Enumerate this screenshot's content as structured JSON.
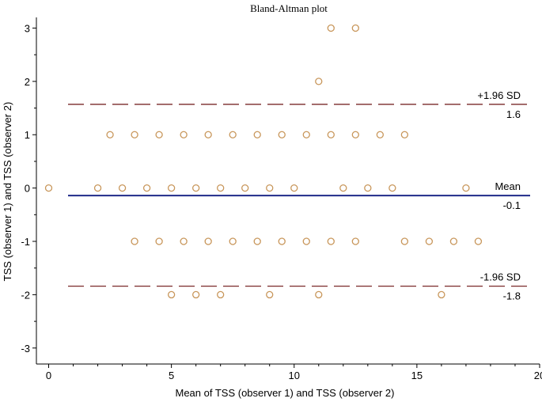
{
  "chart_data": {
    "type": "scatter",
    "title": "Bland-Altman plot",
    "xlabel": "Mean of TSS (observer 1) and TSS (observer 2)",
    "ylabel": "TSS (observer 1) and TSS (observer 2)",
    "xlim": [
      -0.5,
      20
    ],
    "ylim": [
      -3.3,
      3.2
    ],
    "xticks": [
      0,
      5,
      10,
      15,
      20
    ],
    "yticks": [
      -3,
      -2,
      -1,
      0,
      1,
      2,
      3
    ],
    "grid": false,
    "marker_color": "#c8965a",
    "points": [
      {
        "x": 0,
        "y": 0
      },
      {
        "x": 2,
        "y": 0
      },
      {
        "x": 3,
        "y": 0
      },
      {
        "x": 4,
        "y": 0
      },
      {
        "x": 5,
        "y": 0
      },
      {
        "x": 6,
        "y": 0
      },
      {
        "x": 7,
        "y": 0
      },
      {
        "x": 8,
        "y": 0
      },
      {
        "x": 9,
        "y": 0
      },
      {
        "x": 10,
        "y": 0
      },
      {
        "x": 12,
        "y": 0
      },
      {
        "x": 13,
        "y": 0
      },
      {
        "x": 14,
        "y": 0
      },
      {
        "x": 17,
        "y": 0
      },
      {
        "x": 2.5,
        "y": 1
      },
      {
        "x": 3.5,
        "y": 1
      },
      {
        "x": 4.5,
        "y": 1
      },
      {
        "x": 5.5,
        "y": 1
      },
      {
        "x": 6.5,
        "y": 1
      },
      {
        "x": 7.5,
        "y": 1
      },
      {
        "x": 8.5,
        "y": 1
      },
      {
        "x": 9.5,
        "y": 1
      },
      {
        "x": 10.5,
        "y": 1
      },
      {
        "x": 11.5,
        "y": 1
      },
      {
        "x": 12.5,
        "y": 1
      },
      {
        "x": 13.5,
        "y": 1
      },
      {
        "x": 14.5,
        "y": 1
      },
      {
        "x": 11,
        "y": 2
      },
      {
        "x": 11.5,
        "y": 3
      },
      {
        "x": 12.5,
        "y": 3
      },
      {
        "x": 3.5,
        "y": -1
      },
      {
        "x": 4.5,
        "y": -1
      },
      {
        "x": 5.5,
        "y": -1
      },
      {
        "x": 6.5,
        "y": -1
      },
      {
        "x": 7.5,
        "y": -1
      },
      {
        "x": 8.5,
        "y": -1
      },
      {
        "x": 9.5,
        "y": -1
      },
      {
        "x": 10.5,
        "y": -1
      },
      {
        "x": 11.5,
        "y": -1
      },
      {
        "x": 12.5,
        "y": -1
      },
      {
        "x": 14.5,
        "y": -1
      },
      {
        "x": 15.5,
        "y": -1
      },
      {
        "x": 16.5,
        "y": -1
      },
      {
        "x": 17.5,
        "y": -1
      },
      {
        "x": 5,
        "y": -2
      },
      {
        "x": 6,
        "y": -2
      },
      {
        "x": 7,
        "y": -2
      },
      {
        "x": 9,
        "y": -2
      },
      {
        "x": 11,
        "y": -2
      },
      {
        "x": 16,
        "y": -2
      }
    ],
    "reference_lines": [
      {
        "name": "+1.96 SD",
        "value": 1.57,
        "value_label": "1.6",
        "style": "dashed",
        "color": "#7a2a2a"
      },
      {
        "name": "Mean",
        "value": -0.14,
        "value_label": "-0.1",
        "style": "solid",
        "color": "#1f2a8a"
      },
      {
        "name": "-1.96 SD",
        "value": -1.84,
        "value_label": "-1.8",
        "style": "dashed",
        "color": "#7a2a2a"
      }
    ]
  }
}
